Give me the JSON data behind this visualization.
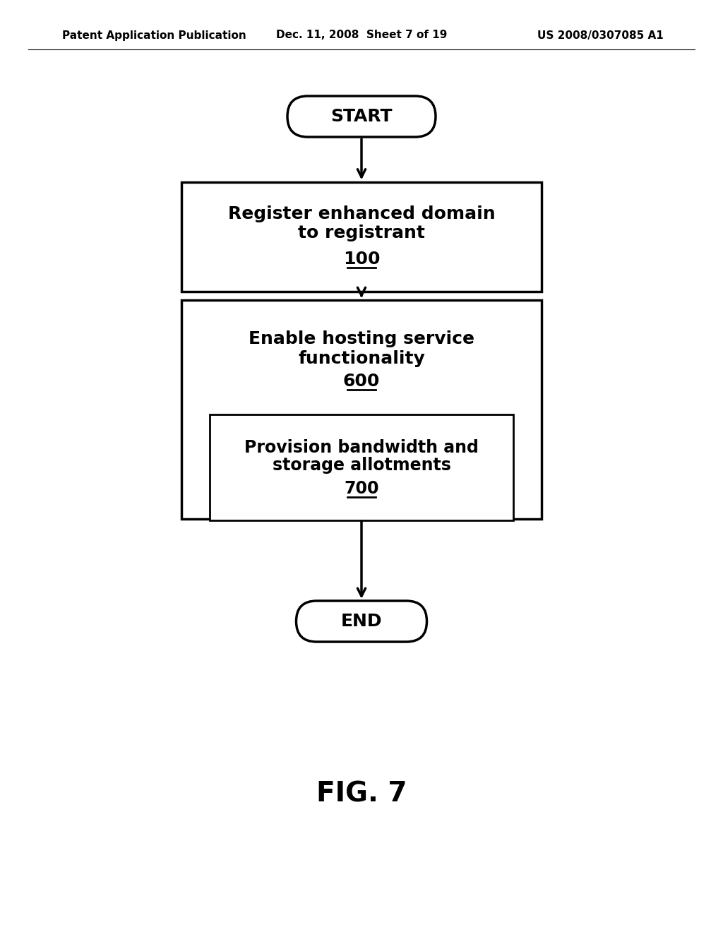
{
  "bg_color": "#ffffff",
  "header_left": "Patent Application Publication",
  "header_mid": "Dec. 11, 2008  Sheet 7 of 19",
  "header_right": "US 2008/0307085 A1",
  "fig_label": "FIG. 7",
  "start_label": "START",
  "box1_line1": "Register enhanced domain",
  "box1_line2": "to registrant",
  "box1_ref": "100",
  "box2_line1": "Enable hosting service",
  "box2_line2": "functionality",
  "box2_ref": "600",
  "box3_line1": "Provision bandwidth and",
  "box3_line2": "storage allotments",
  "box3_ref": "700",
  "end_label": "END",
  "text_color": "#000000",
  "box_edge_color": "#000000",
  "arrow_color": "#000000",
  "header_fontsize": 11,
  "main_fontsize": 18,
  "ref_fontsize": 18,
  "fig_label_fontsize": 28
}
